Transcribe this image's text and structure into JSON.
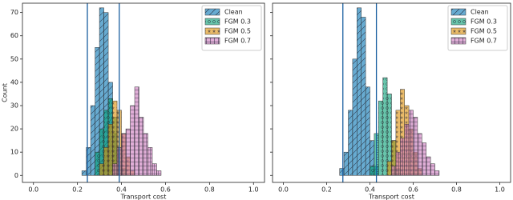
{
  "chart_data": [
    {
      "type": "histogram",
      "xlabel": "Transport cost",
      "ylabel": "Count",
      "xlim": [
        -0.05,
        1.05
      ],
      "ylim": [
        -3,
        74
      ],
      "xticks": [
        {
          "value": 0,
          "label": "0.0"
        },
        {
          "value": 0.2,
          "label": "0.2"
        },
        {
          "value": 0.4,
          "label": "0.4"
        },
        {
          "value": 0.6,
          "label": "0.6"
        },
        {
          "value": 0.8,
          "label": "0.8"
        },
        {
          "value": 1,
          "label": "1.0"
        }
      ],
      "yticks": [
        0,
        10,
        20,
        30,
        40,
        50,
        60,
        70
      ],
      "show_ytick_labels": true,
      "vlines": [
        0.245,
        0.39
      ],
      "vline_color": "#1a5fa0",
      "legend": "upper right",
      "series": [
        {
          "name": "Clean",
          "color": "#0173b2",
          "hatch": "/",
          "bins": [
            0.22,
            0.24,
            0.26,
            0.28,
            0.3,
            0.32,
            0.34,
            0.36,
            0.38,
            0.4
          ],
          "values": [
            2,
            12,
            30,
            55,
            72,
            70,
            40,
            18,
            5
          ]
        },
        {
          "name": "FGM 0.3",
          "color": "#029e73",
          "hatch": "o",
          "bins": [
            0.28,
            0.3,
            0.32,
            0.34,
            0.36,
            0.38,
            0.4,
            0.42
          ],
          "values": [
            10,
            20,
            28,
            33,
            25,
            12,
            3
          ]
        },
        {
          "name": "FGM 0.5",
          "color": "#de8f05",
          "hatch": "*",
          "bins": [
            0.3,
            0.32,
            0.34,
            0.36,
            0.38,
            0.4,
            0.42,
            0.44,
            0.46
          ],
          "values": [
            5,
            12,
            22,
            32,
            28,
            18,
            8,
            2
          ]
        },
        {
          "name": "FGM 0.7",
          "color": "#cc78bc",
          "hatch": "+",
          "bins": [
            0.36,
            0.38,
            0.4,
            0.42,
            0.44,
            0.46,
            0.48,
            0.5,
            0.52,
            0.54,
            0.56,
            0.58
          ],
          "values": [
            5,
            12,
            18,
            20,
            30,
            38,
            25,
            18,
            12,
            5,
            2
          ]
        }
      ]
    },
    {
      "type": "histogram",
      "xlabel": "Transport cost",
      "xlim": [
        -0.05,
        1.05
      ],
      "ylim": [
        -3,
        74
      ],
      "xticks": [
        {
          "value": 0,
          "label": "0.0"
        },
        {
          "value": 0.2,
          "label": "0.2"
        },
        {
          "value": 0.4,
          "label": "0.4"
        },
        {
          "value": 0.6,
          "label": "0.6"
        },
        {
          "value": 0.8,
          "label": "0.8"
        },
        {
          "value": 1,
          "label": "1.0"
        }
      ],
      "yticks": [
        0,
        10,
        20,
        30,
        40,
        50,
        60,
        70
      ],
      "show_ytick_labels": false,
      "vlines": [
        0.275,
        0.43
      ],
      "vline_color": "#1a5fa0",
      "legend": "upper right",
      "series": [
        {
          "name": "Clean",
          "color": "#0173b2",
          "hatch": "/",
          "bins": [
            0.26,
            0.28,
            0.3,
            0.32,
            0.34,
            0.36,
            0.38,
            0.4,
            0.42,
            0.44
          ],
          "values": [
            3,
            10,
            28,
            50,
            72,
            68,
            38,
            15,
            4
          ]
        },
        {
          "name": "FGM 0.3",
          "color": "#029e73",
          "hatch": "o",
          "bins": [
            0.4,
            0.42,
            0.44,
            0.46,
            0.48,
            0.5,
            0.52,
            0.54
          ],
          "values": [
            4,
            18,
            32,
            42,
            35,
            15,
            3
          ]
        },
        {
          "name": "FGM 0.5",
          "color": "#de8f05",
          "hatch": "*",
          "bins": [
            0.48,
            0.5,
            0.52,
            0.54,
            0.56,
            0.58,
            0.6,
            0.62,
            0.64
          ],
          "values": [
            6,
            15,
            28,
            37,
            30,
            20,
            10,
            3
          ]
        },
        {
          "name": "FGM 0.7",
          "color": "#cc78bc",
          "hatch": "+",
          "bins": [
            0.5,
            0.52,
            0.54,
            0.56,
            0.58,
            0.6,
            0.62,
            0.64,
            0.66,
            0.68,
            0.7,
            0.72
          ],
          "values": [
            4,
            10,
            16,
            22,
            28,
            25,
            18,
            14,
            8,
            5,
            2
          ]
        }
      ]
    }
  ]
}
